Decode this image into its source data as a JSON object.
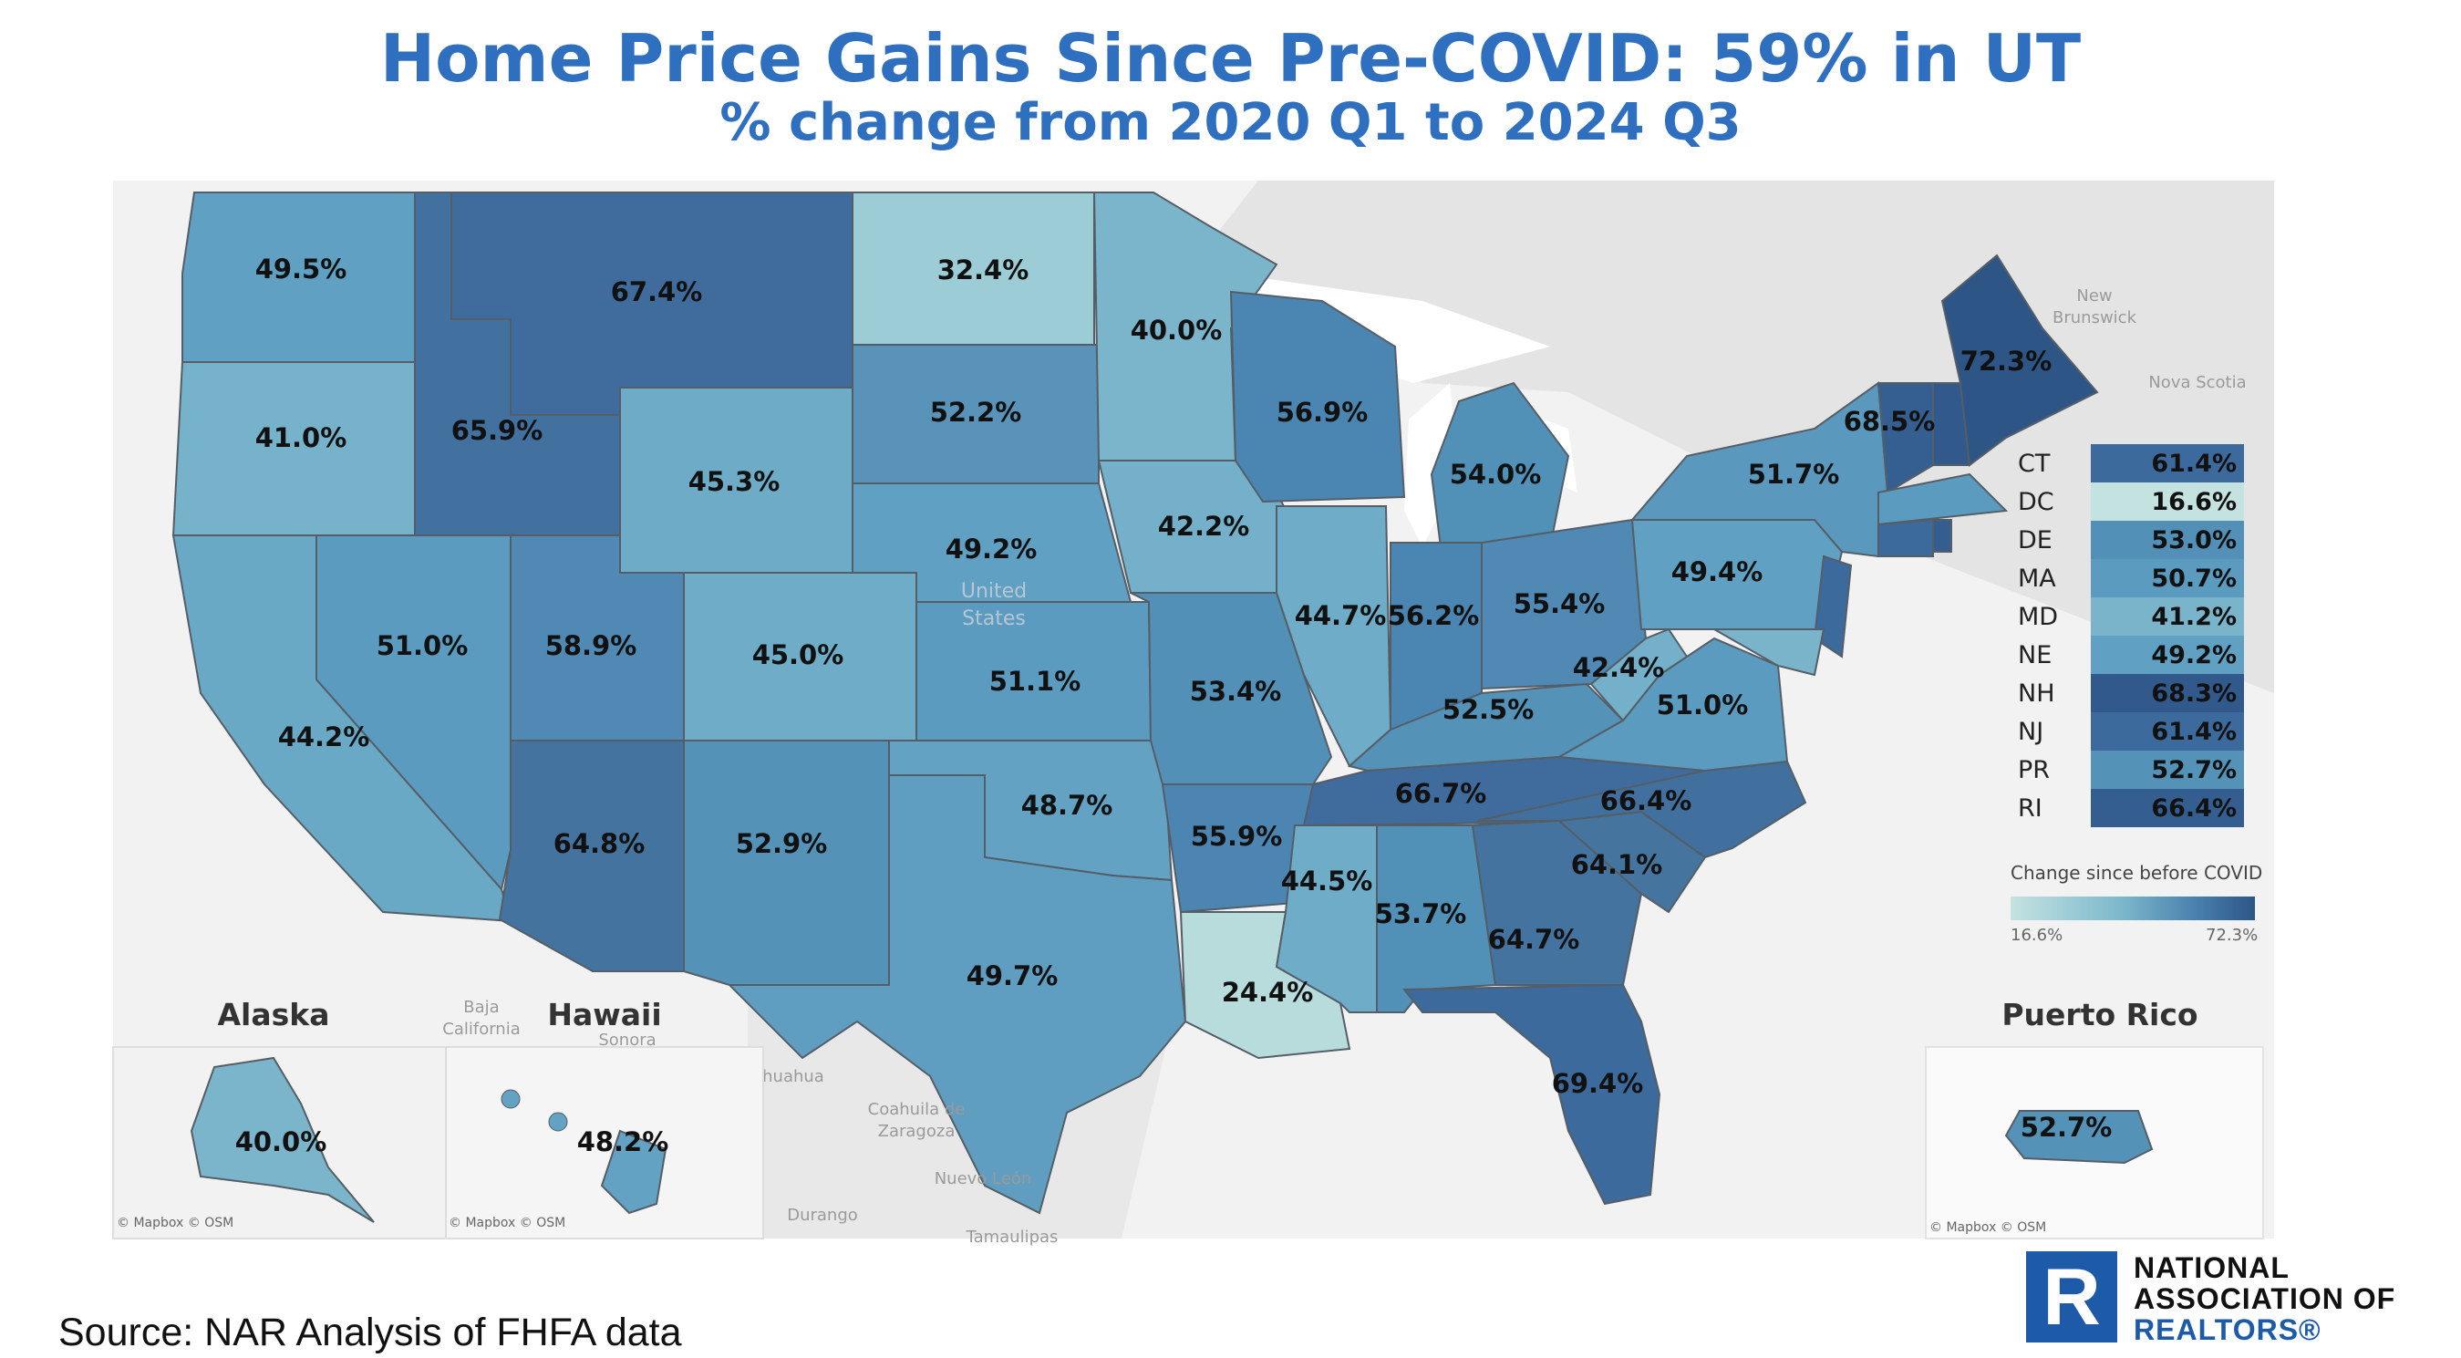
{
  "title": "Home Price Gains Since Pre-COVID: 59% in UT",
  "subtitle": "% change from 2020 Q1 to 2024 Q3",
  "states": {
    "WA": "49.5%",
    "OR": "41.0%",
    "CA": "44.2%",
    "NV": "51.0%",
    "ID": "65.9%",
    "MT": "67.4%",
    "WY": "45.3%",
    "UT": "58.9%",
    "AZ": "64.8%",
    "CO": "45.0%",
    "NM": "52.9%",
    "ND": "32.4%",
    "SD": "52.2%",
    "NE": "49.2%",
    "KS": "51.1%",
    "OK": "48.7%",
    "TX": "49.7%",
    "MN": "40.0%",
    "IA": "42.2%",
    "MO": "53.4%",
    "AR": "55.9%",
    "LA": "24.4%",
    "WI": "56.9%",
    "IL": "44.7%",
    "MI": "54.0%",
    "IN": "56.2%",
    "OH": "55.4%",
    "KY": "52.5%",
    "TN": "66.7%",
    "MS": "44.5%",
    "AL": "53.7%",
    "GA": "64.7%",
    "FL": "69.4%",
    "SC": "64.1%",
    "NC": "66.4%",
    "VA": "51.0%",
    "WV": "42.4%",
    "PA": "49.4%",
    "NY": "51.7%",
    "VT": "68.5%",
    "ME": "72.3%",
    "AK": "40.0%",
    "HI": "48.2%",
    "PR": "52.7%"
  },
  "insets": {
    "alaska": "Alaska",
    "hawaii": "Hawaii",
    "puerto_rico": "Puerto Rico"
  },
  "geo_labels": {
    "new_brunswick_1": "New",
    "new_brunswick_2": "Brunswick",
    "nova_scotia": "Nova Scotia",
    "united_1": "United",
    "united_2": "States",
    "baja_1": "Baja",
    "baja_2": "California",
    "sonora": "Sonora",
    "chihuahua": "huahua",
    "coahuila_1": "Coahuila de",
    "coahuila_2": "Zaragoza",
    "nuevo_leon": "Nuevo León",
    "durango": "Durango",
    "tamaulipas": "Tamaulipas"
  },
  "credits": {
    "alaska": "© Mapbox © OSM",
    "hawaii": "© Mapbox © OSM",
    "pr": "© Mapbox © OSM"
  },
  "small_states_table": [
    {
      "abbr": "CT",
      "value": "61.4%",
      "color": "#3d6a9c"
    },
    {
      "abbr": "DC",
      "value": "16.6%",
      "color": "#c4e3e0"
    },
    {
      "abbr": "DE",
      "value": "53.0%",
      "color": "#5390b7"
    },
    {
      "abbr": "MA",
      "value": "50.7%",
      "color": "#5b9bbf"
    },
    {
      "abbr": "MD",
      "value": "41.2%",
      "color": "#79b4ca"
    },
    {
      "abbr": "NE",
      "value": "49.2%",
      "color": "#60a0c2"
    },
    {
      "abbr": "NH",
      "value": "68.3%",
      "color": "#31598b"
    },
    {
      "abbr": "NJ",
      "value": "61.4%",
      "color": "#3d6a9c"
    },
    {
      "abbr": "PR",
      "value": "52.7%",
      "color": "#5592b8"
    },
    {
      "abbr": "RI",
      "value": "66.4%",
      "color": "#345e90"
    }
  ],
  "legend": {
    "title": "Change since before COVID",
    "min": "16.6%",
    "max": "72.3%",
    "min_color": "#c4e3e0",
    "max_color": "#2d5686"
  },
  "source": "Source: NAR Analysis of FHFA data",
  "logo": {
    "line1": "NATIONAL",
    "line2": "ASSOCIATION OF",
    "line3": "REALTORS®",
    "mark": "R"
  }
}
